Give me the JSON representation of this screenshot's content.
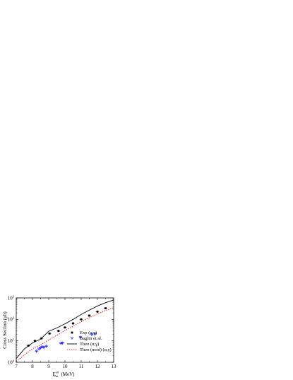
{
  "chart_data": {
    "type": "scatter",
    "ylabel": "Cross Section (μb)",
    "xlabel_main": "E",
    "xlabel_sup": "eff",
    "xlabel_sub": "c.m.",
    "xlabel_unit": "(MeV)",
    "x_ticks": [
      "7",
      "8",
      "9",
      "10",
      "11",
      "12",
      "13"
    ],
    "x_tick_values": [
      7,
      8,
      9,
      10,
      11,
      12,
      13
    ],
    "y_ticks": [
      {
        "base": "10",
        "exp": "0",
        "value": 1
      },
      {
        "base": "10",
        "exp": "1",
        "value": 10
      },
      {
        "base": "10",
        "exp": "2",
        "value": 100
      },
      {
        "base": "10",
        "exp": "3",
        "value": 1000
      }
    ],
    "xlim": [
      7,
      13
    ],
    "ylim": [
      1,
      1000
    ],
    "y_scale": "log",
    "legend_position": "bottom-right",
    "legend": [
      {
        "label": "Exp (α,γ)",
        "marker": "square",
        "color": "#000000"
      },
      {
        "label": "Baglin et al.",
        "marker": "triangle-down",
        "color": "#1a1aff"
      },
      {
        "label": "Theo (α,γ)",
        "marker": "solid-line",
        "color": "#000000"
      },
      {
        "label": "Theo (mod) (α,γ)",
        "marker": "dotted-line",
        "color": "#e03020"
      }
    ],
    "series": [
      {
        "name": "Exp (α,γ)",
        "kind": "points",
        "marker": "square",
        "color": "#000000",
        "x": [
          7.75,
          8.15,
          8.55,
          9.05,
          9.6,
          10.0,
          10.5,
          11.0,
          11.5,
          12.0,
          12.5
        ],
        "y": [
          6.0,
          10.0,
          13.0,
          22.0,
          29.0,
          42.0,
          65.0,
          100.0,
          150.0,
          230.0,
          330.0
        ]
      },
      {
        "name": "Baglin et al.",
        "kind": "points",
        "marker": "triangle-down",
        "color": "#1a1aff",
        "x": [
          8.25,
          8.4,
          8.5,
          8.6,
          8.7,
          8.85,
          9.75,
          9.85,
          10.95,
          11.65,
          11.85
        ],
        "y": [
          3.3,
          4.2,
          4.7,
          5.2,
          4.9,
          5.6,
          7.6,
          7.9,
          14.5,
          19.5,
          21.0
        ]
      },
      {
        "name": "Theo (α,γ)",
        "kind": "line",
        "style": "solid",
        "color": "#000000",
        "x": [
          7.0,
          7.5,
          8.0,
          8.5,
          9.0,
          9.5,
          10.0,
          10.5,
          11.0,
          11.5,
          12.0,
          12.5,
          13.0
        ],
        "y": [
          1.5,
          4.2,
          8.0,
          12.0,
          28.0,
          40.0,
          62.0,
          100.0,
          170.0,
          270.0,
          420.0,
          600.0,
          800.0
        ]
      },
      {
        "name": "Theo (mod) (α,γ)",
        "kind": "line",
        "style": "dotted",
        "color": "#e03020",
        "x": [
          7.0,
          7.5,
          8.0,
          8.5,
          9.0,
          9.5,
          10.0,
          10.5,
          11.0,
          11.5,
          12.0,
          12.5,
          13.0
        ],
        "y": [
          1.1,
          2.2,
          4.3,
          6.5,
          11.0,
          18.0,
          30.0,
          48.0,
          78.0,
          120.0,
          180.0,
          260.0,
          350.0
        ]
      }
    ]
  }
}
